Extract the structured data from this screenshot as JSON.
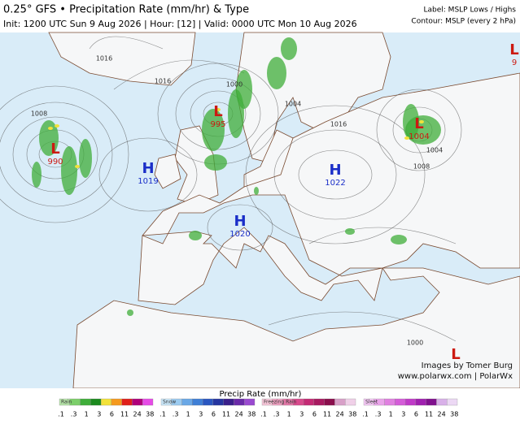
{
  "header": {
    "title": "0.25° GFS • Precipitation Rate (mm/hr) & Type",
    "subtitle": "Init: 1200 UTC Sun 9 Aug 2026 | Hour: [12] | Valid: 0000 UTC Mon 10 Aug 2026",
    "label_note": "Label: MSLP Lows / Highs",
    "contour_note": "Contour: MSLP (every 2 hPa)"
  },
  "centers": [
    {
      "symbol": "L",
      "value": "990"
    },
    {
      "symbol": "L",
      "value": "995"
    },
    {
      "symbol": "H",
      "value": "1019"
    },
    {
      "symbol": "H",
      "value": "1022"
    },
    {
      "symbol": "H",
      "value": "1020"
    },
    {
      "symbol": "L",
      "value": "1004"
    },
    {
      "symbol": "L",
      "value": "9"
    },
    {
      "symbol": "L"
    }
  ],
  "isobar_labels": [
    "1016",
    "1016",
    "1000",
    "1008",
    "1004",
    "1016",
    "1008",
    "1004",
    "1000"
  ],
  "credits": [
    "Images by Tomer Burg",
    "www.polarwx.com | PolarWx"
  ],
  "legend": {
    "title": "Precip Rate (mm/hr)",
    "groups": [
      {
        "name": "Rain",
        "colors": [
          "#b5e3a8",
          "#7ccf6a",
          "#3fae3a",
          "#1c8a1e",
          "#f2e23a",
          "#f59a1e",
          "#e0201a",
          "#b0007a",
          "#e64be6"
        ],
        "ticks": [
          ".1",
          ".3",
          "1",
          "3",
          "6",
          "11",
          "24",
          "38"
        ]
      },
      {
        "name": "Snow",
        "colors": [
          "#c9e6f8",
          "#9ccbf0",
          "#6aa8e6",
          "#3f7fd6",
          "#2a56c0",
          "#2535a0",
          "#3a1f8a",
          "#6a2aa8",
          "#9a4ad0"
        ],
        "ticks": [
          ".1",
          ".3",
          "1",
          "3",
          "6",
          "11",
          "24",
          "38"
        ]
      },
      {
        "name": "Freezing Rain",
        "colors": [
          "#f6c6d8",
          "#eea0c0",
          "#e478a8",
          "#d84a8c",
          "#c42a74",
          "#a81a60",
          "#8a0e4c",
          "#d8a0c8",
          "#f0d0e8"
        ],
        "ticks": [
          ".1",
          ".3",
          "1",
          "3",
          "6",
          "11",
          "24",
          "38"
        ]
      },
      {
        "name": "Sleet",
        "colors": [
          "#f4c8f4",
          "#eaa4ea",
          "#e080e0",
          "#d45cd8",
          "#c03ac8",
          "#a020b0",
          "#80108e",
          "#d8b0e8",
          "#ecd8f4"
        ],
        "ticks": [
          ".1",
          ".3",
          "1",
          "3",
          "6",
          "11",
          "24",
          "38"
        ]
      }
    ]
  }
}
